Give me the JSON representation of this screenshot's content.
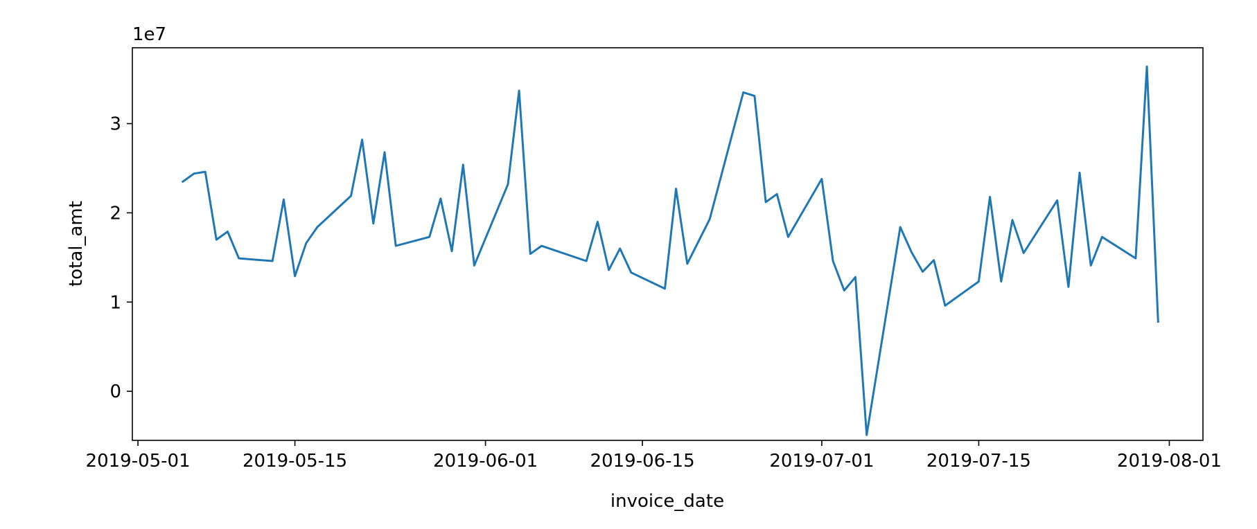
{
  "chart_data": {
    "type": "line",
    "xlabel": "invoice_date",
    "ylabel": "total_amt",
    "offset_text": "1e7",
    "x_ticks": [
      "2019-05-01",
      "2019-05-15",
      "2019-06-01",
      "2019-06-15",
      "2019-07-01",
      "2019-07-15",
      "2019-08-01"
    ],
    "y_ticks": [
      0,
      1,
      2,
      3
    ],
    "y_scale_multiplier": 10000000,
    "xlim": [
      "2019-04-30T12:00",
      "2019-08-04"
    ],
    "ylim": [
      -0.55,
      3.85
    ],
    "grid": false,
    "color": "#1f77b4",
    "series": [
      {
        "x": [
          "2019-05-05",
          "2019-05-06",
          "2019-05-07",
          "2019-05-08",
          "2019-05-09",
          "2019-05-10",
          "2019-05-13",
          "2019-05-14",
          "2019-05-15",
          "2019-05-16",
          "2019-05-17",
          "2019-05-20",
          "2019-05-21",
          "2019-05-22",
          "2019-05-23",
          "2019-05-24",
          "2019-05-27",
          "2019-05-28",
          "2019-05-29",
          "2019-05-30",
          "2019-05-31",
          "2019-06-03",
          "2019-06-04",
          "2019-06-05",
          "2019-06-06",
          "2019-06-10",
          "2019-06-11",
          "2019-06-12",
          "2019-06-13",
          "2019-06-14",
          "2019-06-17",
          "2019-06-18",
          "2019-06-19",
          "2019-06-21",
          "2019-06-24",
          "2019-06-25",
          "2019-06-26",
          "2019-06-27",
          "2019-06-28",
          "2019-07-01",
          "2019-07-02",
          "2019-07-03",
          "2019-07-04",
          "2019-07-05",
          "2019-07-08",
          "2019-07-09",
          "2019-07-10",
          "2019-07-11",
          "2019-07-12",
          "2019-07-15",
          "2019-07-16",
          "2019-07-17",
          "2019-07-18",
          "2019-07-19",
          "2019-07-22",
          "2019-07-23",
          "2019-07-24",
          "2019-07-25",
          "2019-07-26",
          "2019-07-29",
          "2019-07-30",
          "2019-07-31"
        ],
        "values": [
          2.35,
          2.44,
          2.46,
          1.7,
          1.79,
          1.49,
          1.46,
          2.15,
          1.29,
          1.66,
          1.84,
          2.19,
          2.82,
          1.88,
          2.68,
          1.63,
          1.73,
          2.16,
          1.57,
          2.54,
          1.41,
          2.32,
          3.37,
          1.54,
          1.63,
          1.46,
          1.9,
          1.36,
          1.6,
          1.33,
          1.15,
          2.27,
          1.43,
          1.93,
          3.35,
          3.31,
          2.12,
          2.21,
          1.73,
          2.38,
          1.46,
          1.13,
          1.28,
          -0.49,
          1.84,
          1.56,
          1.34,
          1.47,
          0.96,
          1.23,
          2.18,
          1.23,
          1.92,
          1.55,
          2.14,
          1.17,
          2.45,
          1.41,
          1.73,
          1.49,
          3.64,
          0.78
        ]
      }
    ]
  }
}
